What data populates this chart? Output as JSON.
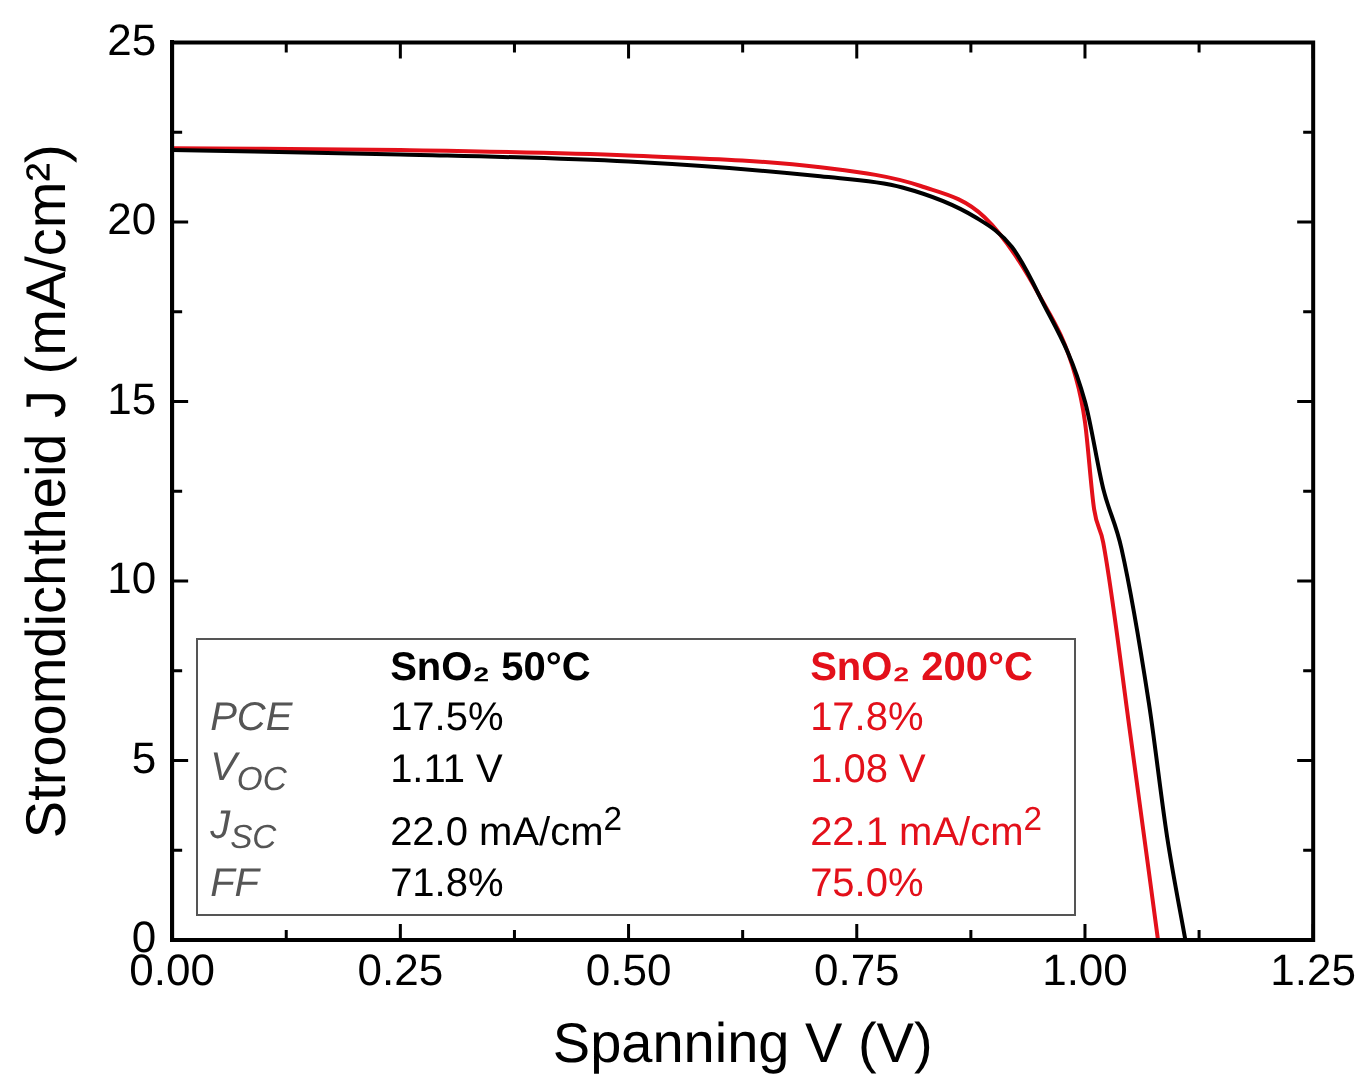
{
  "chart_data": {
    "type": "line",
    "xlabel": "Spanning V (V)",
    "ylabel": "Stroomdichtheid J (mA/cm²)",
    "xlim": [
      0,
      1.25
    ],
    "xticks": [
      {
        "value": 0,
        "label": "0.00"
      },
      {
        "value": 0.25,
        "label": "0.25"
      },
      {
        "value": 0.5,
        "label": "0.50"
      },
      {
        "value": 0.75,
        "label": "0.75"
      },
      {
        "value": 1,
        "label": "1.00"
      },
      {
        "value": 1.25,
        "label": "1.25"
      }
    ],
    "ylim": [
      0,
      25
    ],
    "yticks": [
      0,
      5,
      10,
      15,
      20,
      25
    ],
    "marker": "none",
    "line_style": "solid",
    "legend": false,
    "grid": false,
    "series": [
      {
        "name": "SnO₂ 50°C",
        "color": "#000000",
        "x": [
          0,
          0.25,
          0.5,
          0.71,
          0.8,
          0.88,
          0.92,
          0.95,
          1.0,
          1.02,
          1.04,
          1.07,
          1.09,
          1.11
        ],
        "values": [
          22.0,
          21.88,
          21.68,
          21.27,
          20.96,
          20.13,
          19.3,
          17.95,
          15.0,
          12.57,
          10.9,
          6.6,
          2.87,
          0
        ]
      },
      {
        "name": "SnO₂ 200°C",
        "color": "#e3101a",
        "x": [
          0,
          0.25,
          0.5,
          0.71,
          0.82,
          0.89,
          0.95,
          0.99,
          1.0,
          1.01,
          1.02,
          1.05,
          1.08
        ],
        "values": [
          22.05,
          22.0,
          21.85,
          21.52,
          21.0,
          20.13,
          17.95,
          15.67,
          14.43,
          12.0,
          11.07,
          5.67,
          0
        ]
      }
    ],
    "annotations": [
      "PCE",
      "17.5%",
      "17.8%",
      "V$_{OC}$",
      "1.11 V",
      "1.08 V",
      "J$_{SC}$",
      "22.0 mA/cm$^{2}$",
      "22.1 mA/cm$^{2}$",
      "FF",
      "71.8%",
      "75.0%"
    ]
  }
}
